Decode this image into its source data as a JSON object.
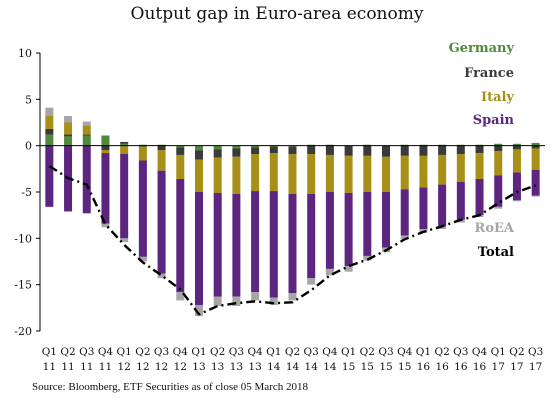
{
  "chart_data": {
    "type": "bar",
    "title": "Output gap in Euro-area economy",
    "source": "Source: Bloomberg, ETF Securities as of close 05 March 2018",
    "ylim": [
      -20,
      10
    ],
    "yticks": [
      10,
      5,
      0,
      -5,
      -10,
      -15,
      -20
    ],
    "grid": false,
    "legend_position": "right",
    "categories": [
      "Q1 11",
      "Q2 11",
      "Q3 11",
      "Q4 11",
      "Q1 12",
      "Q2 12",
      "Q3 12",
      "Q4 12",
      "Q1 13",
      "Q2 13",
      "Q3 13",
      "Q4 13",
      "Q1 14",
      "Q2 14",
      "Q3 14",
      "Q4 14",
      "Q1 15",
      "Q2 15",
      "Q3 15",
      "Q4 15",
      "Q1 16",
      "Q2 16",
      "Q3 16",
      "Q4 16",
      "Q1 17",
      "Q2 17",
      "Q3 17"
    ],
    "x_labels_top": [
      "Q1",
      "Q2",
      "Q3",
      "Q4",
      "Q1",
      "Q2",
      "Q3",
      "Q4",
      "Q1",
      "Q2",
      "Q3",
      "Q4",
      "Q1",
      "Q2",
      "Q3",
      "Q4",
      "Q1",
      "Q2",
      "Q3",
      "Q4",
      "Q1",
      "Q2",
      "Q3",
      "Q4",
      "Q1",
      "Q2",
      "Q3"
    ],
    "x_labels_bottom": [
      "11",
      "11",
      "11",
      "11",
      "12",
      "12",
      "12",
      "12",
      "13",
      "13",
      "13",
      "13",
      "14",
      "14",
      "14",
      "14",
      "15",
      "15",
      "15",
      "15",
      "16",
      "16",
      "16",
      "16",
      "17",
      "17",
      "17"
    ],
    "series": [
      {
        "name": "Germany",
        "color": "#4e8a3a",
        "values": [
          1.2,
          1.0,
          1.1,
          1.1,
          0.2,
          0.1,
          0.1,
          -0.2,
          -0.5,
          -0.4,
          -0.3,
          -0.2,
          -0.1,
          -0.1,
          0.1,
          0.1,
          0.0,
          0.1,
          0.0,
          0.1,
          0.1,
          0.1,
          0.1,
          0.1,
          0.2,
          0.2,
          0.3
        ]
      },
      {
        "name": "France",
        "color": "#3a3a3a",
        "values": [
          0.6,
          0.2,
          0.1,
          -0.5,
          0.2,
          -0.1,
          -0.5,
          -0.8,
          -1.0,
          -0.9,
          -0.9,
          -0.7,
          -0.7,
          -0.8,
          -0.9,
          -1.0,
          -1.1,
          -1.1,
          -1.2,
          -1.1,
          -1.1,
          -1.0,
          -0.9,
          -0.8,
          -0.6,
          -0.4,
          -0.3
        ]
      },
      {
        "name": "Italy",
        "color": "#a89018",
        "values": [
          1.4,
          1.3,
          1.0,
          -0.3,
          -0.9,
          -1.5,
          -2.2,
          -2.6,
          -3.5,
          -3.8,
          -4.0,
          -4.0,
          -4.1,
          -4.3,
          -4.3,
          -4.0,
          -4.0,
          -3.9,
          -3.8,
          -3.6,
          -3.4,
          -3.2,
          -3.0,
          -2.8,
          -2.6,
          -2.5,
          -2.3
        ]
      },
      {
        "name": "Spain",
        "color": "#5c2580",
        "values": [
          -6.6,
          -7.1,
          -7.3,
          -7.6,
          -9.1,
          -10.4,
          -11.1,
          -12.2,
          -12.2,
          -11.2,
          -11.1,
          -10.9,
          -11.5,
          -10.7,
          -9.1,
          -8.3,
          -7.9,
          -6.9,
          -6.0,
          -5.0,
          -4.5,
          -4.5,
          -4.1,
          -3.9,
          -3.4,
          -3.0,
          -2.8
        ]
      },
      {
        "name": "RoEA",
        "color": "#a6a6a6",
        "values": [
          0.9,
          0.7,
          0.4,
          -0.4,
          -0.4,
          -0.5,
          -0.5,
          -0.9,
          -1.2,
          -1.0,
          -1.0,
          -0.9,
          -0.8,
          -0.8,
          -0.7,
          -0.7,
          -0.6,
          -0.5,
          -0.5,
          -0.4,
          -0.4,
          -0.3,
          -0.3,
          -0.2,
          -0.2,
          -0.1,
          -0.1
        ]
      },
      {
        "name": "Total",
        "color": "#000000",
        "style": "dash-dot line",
        "values": [
          -2.2,
          -3.5,
          -4.2,
          -8.5,
          -10.7,
          -12.6,
          -14.0,
          -15.5,
          -18.2,
          -17.3,
          -17.0,
          -16.8,
          -17.0,
          -16.9,
          -15.6,
          -14.0,
          -13.0,
          -12.3,
          -11.3,
          -10.1,
          -9.3,
          -8.7,
          -8.0,
          -7.5,
          -6.2,
          -5.0,
          -4.3
        ]
      }
    ]
  }
}
